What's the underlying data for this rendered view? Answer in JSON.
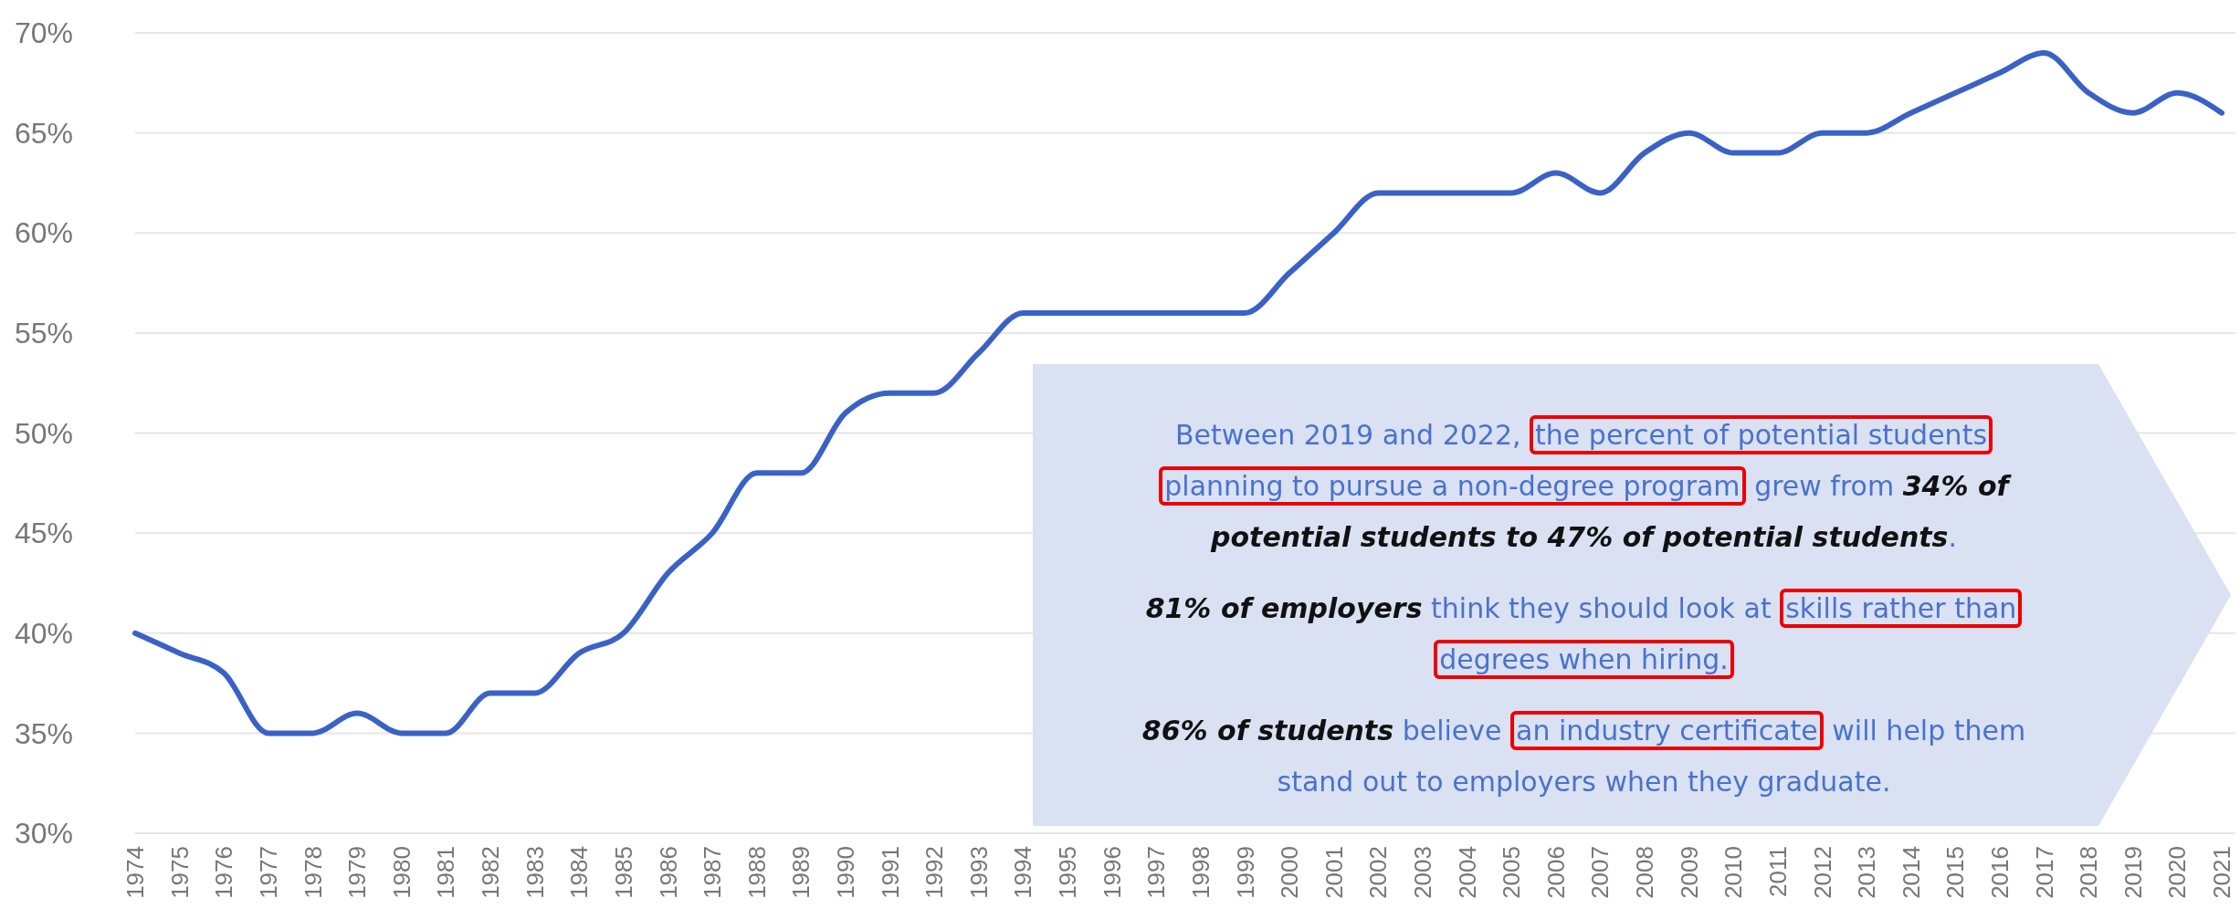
{
  "chart_data": {
    "type": "line",
    "categories": [
      "1974",
      "1975",
      "1976",
      "1977",
      "1978",
      "1979",
      "1980",
      "1981",
      "1982",
      "1983",
      "1984",
      "1985",
      "1986",
      "1987",
      "1988",
      "1989",
      "1990",
      "1991",
      "1992",
      "1993",
      "1994",
      "1995",
      "1996",
      "1997",
      "1998",
      "1999",
      "2000",
      "2001",
      "2002",
      "2003",
      "2004",
      "2005",
      "2006",
      "2007",
      "2008",
      "2009",
      "2010",
      "2011",
      "2012",
      "2013",
      "2014",
      "2015",
      "2016",
      "2017",
      "2018",
      "2019",
      "2020",
      "2021"
    ],
    "series": [
      {
        "color": "#3a62c6",
        "values": [
          40,
          39,
          38,
          35,
          35,
          36,
          35,
          35,
          37,
          37,
          39,
          40,
          43,
          45,
          48,
          48,
          51,
          52,
          52,
          54,
          56,
          56,
          56,
          56,
          56,
          56,
          58,
          60,
          62,
          62,
          62,
          62,
          63,
          62,
          64,
          65,
          64,
          64,
          65,
          65,
          66,
          67,
          68,
          69,
          67,
          66,
          67,
          66
        ]
      }
    ],
    "ylim": [
      30,
      70
    ],
    "yticks": [
      {
        "value": 30,
        "label": "30%"
      },
      {
        "value": 35,
        "label": "35%"
      },
      {
        "value": 40,
        "label": "40%"
      },
      {
        "value": 45,
        "label": "45%"
      },
      {
        "value": 50,
        "label": "50%"
      },
      {
        "value": 55,
        "label": "55%"
      },
      {
        "value": 60,
        "label": "60%"
      },
      {
        "value": 65,
        "label": "65%"
      },
      {
        "value": 70,
        "label": "70%"
      }
    ],
    "grid": "y",
    "marker": "none",
    "line_style": "solid",
    "annotations": [
      "Between 2019 and 2022,",
      "the percent of potential students",
      "planning to pursue a non-degree program",
      "grew from",
      "34% of",
      "potential students to 47% of potential students",
      ".",
      "81% of employers",
      "think they should look at",
      "skills rather than",
      "degrees when hiring.",
      "86% of students",
      "believe",
      "an industry certificate",
      "will help them",
      "stand out to employers when they graduate."
    ]
  }
}
